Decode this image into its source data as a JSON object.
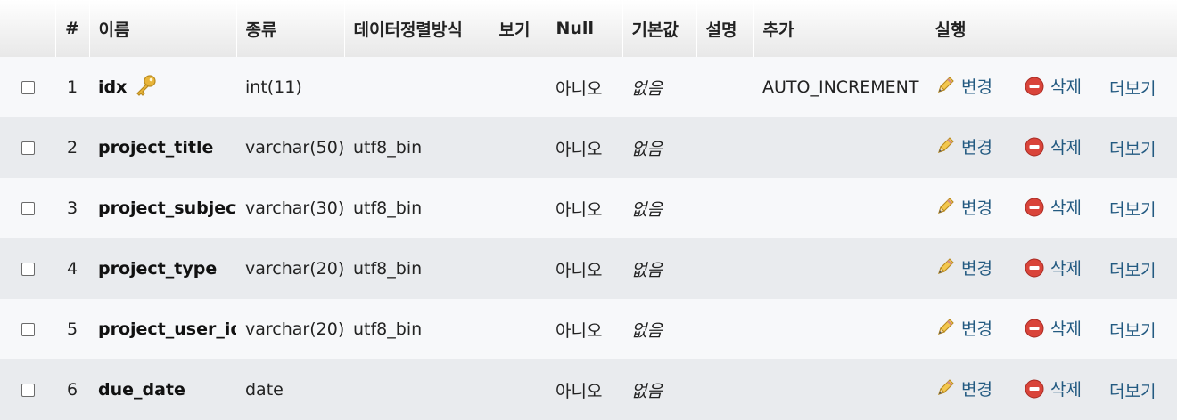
{
  "headers": {
    "num": "#",
    "name": "이름",
    "type": "종류",
    "collation": "데이터정렬방식",
    "attributes": "보기",
    "null": "Null",
    "default": "기본값",
    "comment": "설명",
    "extra": "추가",
    "action": "실행"
  },
  "actions": {
    "edit": "변경",
    "drop": "삭제",
    "more": "더보기"
  },
  "rows": [
    {
      "num": "1",
      "name": "idx",
      "primary_key": true,
      "type": "int(11)",
      "collation": "",
      "attributes": "",
      "null": "아니오",
      "default": "없음",
      "comment": "",
      "extra": "AUTO_INCREMENT"
    },
    {
      "num": "2",
      "name": "project_title",
      "primary_key": false,
      "type": "varchar(50)",
      "collation": "utf8_bin",
      "attributes": "",
      "null": "아니오",
      "default": "없음",
      "comment": "",
      "extra": ""
    },
    {
      "num": "3",
      "name": "project_subject",
      "primary_key": false,
      "type": "varchar(30)",
      "collation": "utf8_bin",
      "attributes": "",
      "null": "아니오",
      "default": "없음",
      "comment": "",
      "extra": ""
    },
    {
      "num": "4",
      "name": "project_type",
      "primary_key": false,
      "type": "varchar(20)",
      "collation": "utf8_bin",
      "attributes": "",
      "null": "아니오",
      "default": "없음",
      "comment": "",
      "extra": ""
    },
    {
      "num": "5",
      "name": "project_user_id",
      "primary_key": false,
      "type": "varchar(20)",
      "collation": "utf8_bin",
      "attributes": "",
      "null": "아니오",
      "default": "없음",
      "comment": "",
      "extra": ""
    },
    {
      "num": "6",
      "name": "due_date",
      "primary_key": false,
      "type": "date",
      "collation": "",
      "attributes": "",
      "null": "아니오",
      "default": "없음",
      "comment": "",
      "extra": ""
    }
  ],
  "colors": {
    "link": "#235a81",
    "row_odd": "#f7f8fa",
    "row_even": "#e9ebee",
    "drop_icon": "#d9443a",
    "key_icon": "#e8b53a"
  }
}
